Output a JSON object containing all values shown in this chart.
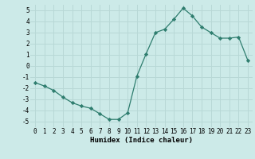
{
  "x": [
    0,
    1,
    2,
    3,
    4,
    5,
    6,
    7,
    8,
    9,
    10,
    11,
    12,
    13,
    14,
    15,
    16,
    17,
    18,
    19,
    20,
    21,
    22,
    23
  ],
  "y": [
    -1.5,
    -1.8,
    -2.2,
    -2.8,
    -3.3,
    -3.6,
    -3.8,
    -4.3,
    -4.8,
    -4.8,
    -4.2,
    -0.9,
    1.1,
    3.0,
    3.3,
    4.2,
    5.2,
    4.5,
    3.5,
    3.0,
    2.5,
    2.5,
    2.6,
    0.5
  ],
  "xlabel": "Humidex (Indice chaleur)",
  "line_color": "#2e7d6e",
  "marker": "D",
  "marker_size": 2.2,
  "bg_color": "#cceae8",
  "grid_color": "#b8d8d6",
  "xlim": [
    -0.5,
    23.5
  ],
  "ylim": [
    -5.5,
    5.5
  ],
  "xticks": [
    0,
    1,
    2,
    3,
    4,
    5,
    6,
    7,
    8,
    9,
    10,
    11,
    12,
    13,
    14,
    15,
    16,
    17,
    18,
    19,
    20,
    21,
    22,
    23
  ],
  "yticks": [
    -5,
    -4,
    -3,
    -2,
    -1,
    0,
    1,
    2,
    3,
    4,
    5
  ],
  "tick_fontsize": 5.5,
  "xlabel_fontsize": 6.5
}
